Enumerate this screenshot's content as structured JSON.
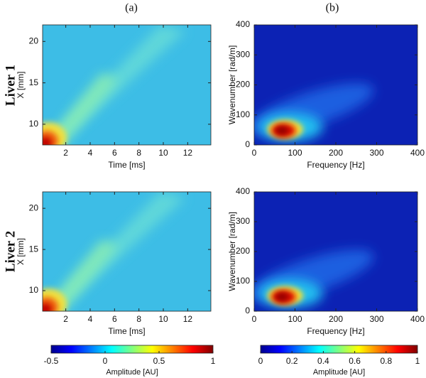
{
  "column_labels": [
    "(a)",
    "(b)"
  ],
  "row_labels": [
    "Liver 1",
    "Liver 2"
  ],
  "chart_data": [
    {
      "type": "heatmap",
      "colormap": "jet",
      "xlabel": "Time [ms]",
      "ylabel": "X [mm]",
      "xlim": [
        0.1,
        13.9
      ],
      "ylim": [
        7.5,
        22
      ],
      "xticks": [
        2,
        4,
        6,
        8,
        10,
        12
      ],
      "yticks": [
        10,
        15,
        20
      ]
    },
    {
      "type": "heatmap",
      "colormap": "jet",
      "xlabel": "Frequency [Hz]",
      "ylabel": "Wavenumber [rad/m]",
      "xlim": [
        0,
        400
      ],
      "ylim": [
        0,
        400
      ],
      "xticks": [
        0,
        100,
        200,
        300,
        400
      ],
      "yticks": [
        0,
        100,
        200,
        300,
        400
      ]
    },
    {
      "type": "heatmap",
      "colormap": "jet",
      "xlabel": "Time [ms]",
      "ylabel": "X [mm]",
      "xlim": [
        0.1,
        13.9
      ],
      "ylim": [
        7.5,
        22
      ],
      "xticks": [
        2,
        4,
        6,
        8,
        10,
        12
      ],
      "yticks": [
        10,
        15,
        20
      ]
    },
    {
      "type": "heatmap",
      "colormap": "jet",
      "xlabel": "Frequency [Hz]",
      "ylabel": "Wavenumber [rad/m]",
      "xlim": [
        0,
        400
      ],
      "ylim": [
        0,
        400
      ],
      "xticks": [
        0,
        100,
        200,
        300,
        400
      ],
      "yticks": [
        0,
        100,
        200,
        300,
        400
      ]
    },
    {
      "type": "colorbar",
      "colormap": "jet",
      "label": "Amplitude [AU]",
      "lim": [
        -0.5,
        1
      ],
      "ticks": [
        -0.5,
        0,
        0.5,
        1
      ]
    },
    {
      "type": "colorbar",
      "colormap": "jet",
      "label": "Amplitude [AU]",
      "lim": [
        0,
        1
      ],
      "ticks": [
        0,
        0.2,
        0.4,
        0.6,
        0.8,
        1
      ]
    }
  ]
}
